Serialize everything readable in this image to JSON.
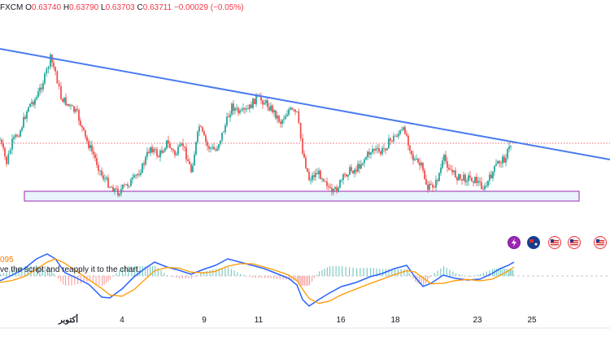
{
  "header": {
    "symbol": "FXCM",
    "open_label": "O",
    "open": "0.63740",
    "high_label": "H",
    "high": "0.63790",
    "low_label": "L",
    "low": "0.63703",
    "close_label": "C",
    "close": "0.63711",
    "change": "−0.00029 (−0.05%)"
  },
  "indicator": {
    "value_label": "095",
    "message": "ve the script and reapply it to the chart."
  },
  "x_axis": {
    "labels": [
      "أكتوبر",
      "4",
      "9",
      "11",
      "16",
      "18",
      "23",
      "25"
    ]
  },
  "colors": {
    "up": "#26a69a",
    "down": "#ef5350",
    "trendline": "#4a7bf0",
    "support_box_fill": "#e8f4fb",
    "support_box_border": "#9c27b0",
    "macd_line": "#2962ff",
    "signal_line": "#ff9800",
    "price_line": "#f23645"
  },
  "events": {
    "items": [
      "lightning-icon",
      "au-flag-icon",
      "us-flag-icon",
      "us-flag-icon",
      "us-flag-icon"
    ]
  },
  "chart_data": {
    "type": "candlestick",
    "trendline": "descending resistance line",
    "support_zone": "horizontal rectangle",
    "oscillator": "MACD-style with histogram"
  }
}
